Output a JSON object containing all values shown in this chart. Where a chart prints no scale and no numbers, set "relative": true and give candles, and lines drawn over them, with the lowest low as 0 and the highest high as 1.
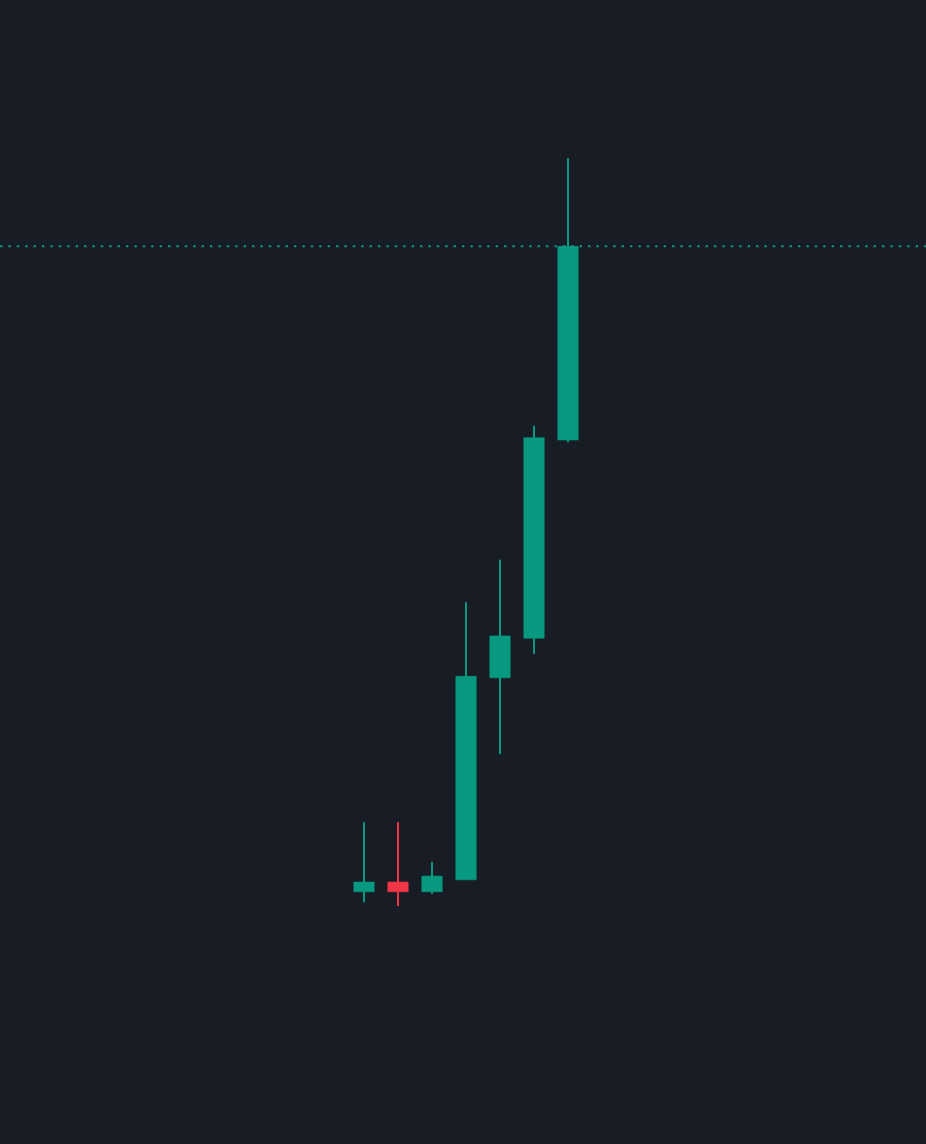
{
  "chart_data": {
    "type": "candlestick",
    "relative": true,
    "categories": [
      null,
      null,
      null,
      null,
      null,
      null,
      null
    ],
    "ohlc": [
      [
        0.019,
        0.112,
        0.005,
        0.032
      ],
      [
        0.032,
        0.112,
        0.0,
        0.019
      ],
      [
        0.019,
        0.059,
        0.016,
        0.04
      ],
      [
        0.035,
        0.406,
        0.035,
        0.307
      ],
      [
        0.305,
        0.463,
        0.203,
        0.361
      ],
      [
        0.358,
        0.642,
        0.337,
        0.626
      ],
      [
        0.623,
        1.0,
        0.62,
        0.882
      ]
    ],
    "colors": [
      "#089981",
      "#f23645",
      "#089981",
      "#089981",
      "#089981",
      "#089981",
      "#089981"
    ],
    "ref_lines": [
      {
        "axis": "y",
        "value": 0.882,
        "color": "#089981",
        "line_style": "dotted"
      }
    ]
  }
}
